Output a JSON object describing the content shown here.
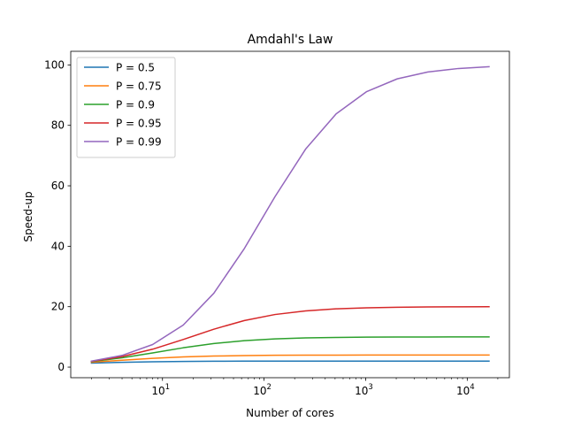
{
  "chart_data": {
    "type": "line",
    "title": "Amdahl's Law",
    "xlabel": "Number of cores",
    "ylabel": "Speed-up",
    "xscale": "log",
    "xlim": [
      1.25,
      26000
    ],
    "ylim": [
      -3.5,
      104.5
    ],
    "x_ticks": [
      {
        "value": 10,
        "base": "10",
        "exp": "1"
      },
      {
        "value": 100,
        "base": "10",
        "exp": "2"
      },
      {
        "value": 1000,
        "base": "10",
        "exp": "3"
      },
      {
        "value": 10000,
        "base": "10",
        "exp": "4"
      }
    ],
    "y_ticks": [
      0,
      20,
      40,
      60,
      80,
      100
    ],
    "grid": false,
    "legend": "upper-left",
    "x": [
      2,
      4,
      8,
      16,
      32,
      64,
      128,
      256,
      512,
      1024,
      2048,
      4096,
      8192,
      16384
    ],
    "series": [
      {
        "name": "P = 0.5",
        "color": "#1f77b4",
        "values": [
          1.33,
          1.6,
          1.78,
          1.88,
          1.94,
          1.97,
          1.98,
          1.99,
          2.0,
          2.0,
          2.0,
          2.0,
          2.0,
          2.0
        ]
      },
      {
        "name": "P = 0.75",
        "color": "#ff7f0e",
        "values": [
          1.6,
          2.29,
          2.91,
          3.37,
          3.66,
          3.82,
          3.91,
          3.95,
          3.98,
          3.99,
          3.99,
          4.0,
          4.0,
          4.0
        ]
      },
      {
        "name": "P = 0.9",
        "color": "#2ca02c",
        "values": [
          1.82,
          3.08,
          4.71,
          6.4,
          7.8,
          8.77,
          9.34,
          9.66,
          9.83,
          9.91,
          9.96,
          9.98,
          9.99,
          9.99
        ]
      },
      {
        "name": "P = 0.95",
        "color": "#d62728",
        "values": [
          1.9,
          3.48,
          5.93,
          9.14,
          12.55,
          15.42,
          17.41,
          18.6,
          19.28,
          19.64,
          19.82,
          19.91,
          19.95,
          19.98
        ]
      },
      {
        "name": "P = 0.99",
        "color": "#9467bd",
        "values": [
          1.98,
          3.88,
          7.48,
          13.91,
          24.43,
          39.26,
          56.39,
          72.11,
          83.79,
          91.18,
          95.39,
          97.66,
          98.81,
          99.4
        ]
      }
    ]
  }
}
